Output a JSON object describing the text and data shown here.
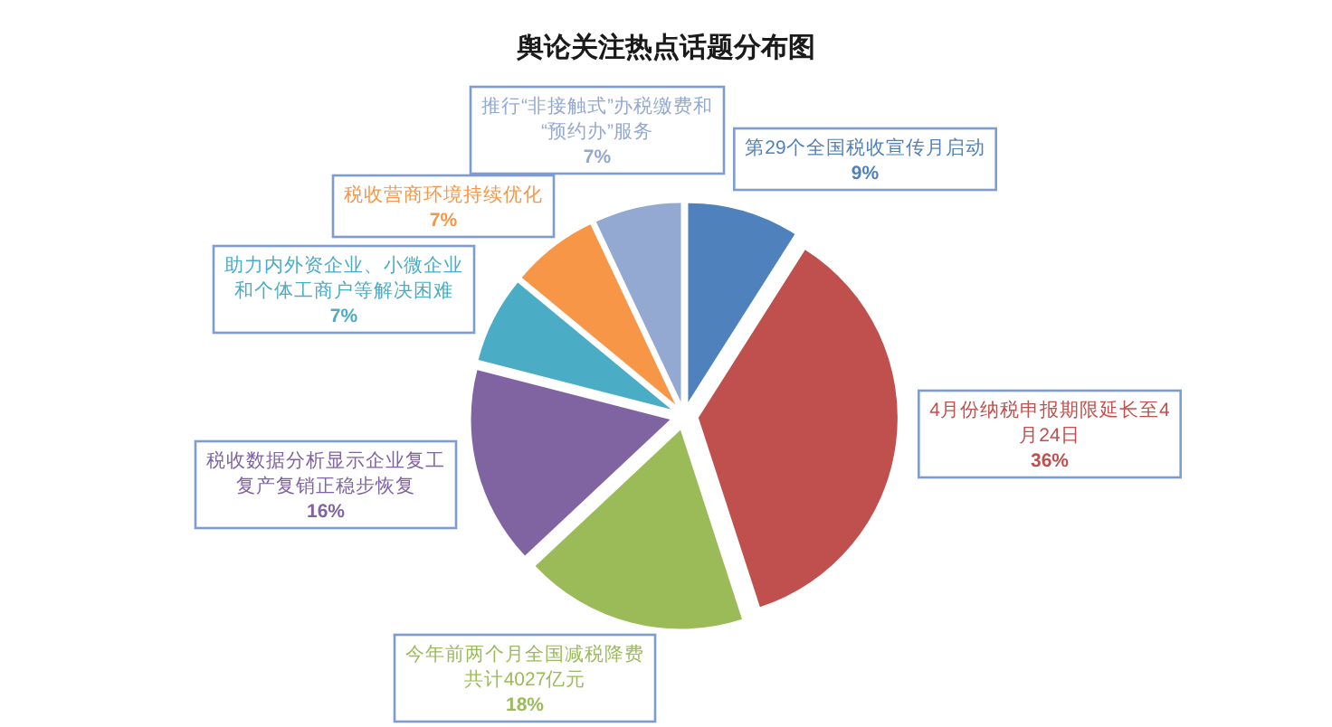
{
  "chart_data": {
    "type": "pie",
    "title": "舆论关注热点话题分布图",
    "categories": [
      "第29个全国税收宣传月启动",
      "4月份纳税申报期限延长至4月24日",
      "今年前两个月全国减税降费共计4027亿元",
      "税收数据分析显示企业复工复产复销正稳步恢复",
      "助力内外资企业、小微企业和个体工商户等解决困难",
      "税收营商环境持续优化",
      "推行“非接触式”办税缴费和“预约办”服务"
    ],
    "values": [
      9,
      36,
      18,
      16,
      7,
      7,
      7
    ],
    "value_labels": [
      "9%",
      "36%",
      "18%",
      "16%",
      "7%",
      "7%",
      "7%"
    ],
    "colors": [
      "#4f81bd",
      "#c0504d",
      "#9bbb59",
      "#8064a2",
      "#4bacc6",
      "#f79646",
      "#93a9d1"
    ]
  }
}
